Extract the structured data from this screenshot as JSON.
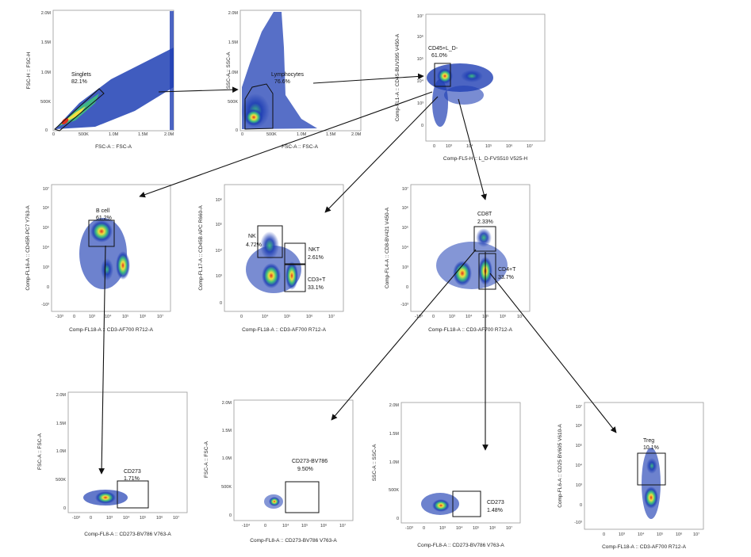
{
  "colors": {
    "low": "#1f3fb4",
    "mid": "#3fbf7f",
    "high": "#f0e040",
    "peak": "#e0301e"
  },
  "plots": [
    {
      "id": "p1",
      "x_label": "FSC-A :: FSC-A",
      "y_label": "FSC-H :: FSC-H",
      "x_ticks": [
        "0",
        "500K",
        "1.0M",
        "1.5M",
        "2.0M"
      ],
      "y_ticks": [
        "0",
        "500K",
        "1.0M",
        "1.5M",
        "2.0M"
      ],
      "gates": [
        {
          "name": "Singlets",
          "pct": "82.1%"
        }
      ]
    },
    {
      "id": "p2",
      "x_label": "FSC-A :: FSC-A",
      "y_label": "SSC-A :: SSC-A",
      "x_ticks": [
        "0",
        "500K",
        "1.0M",
        "1.5M",
        "2.0M"
      ],
      "y_ticks": [
        "0",
        "500K",
        "1.0M",
        "1.5M",
        "2.0M"
      ],
      "gates": [
        {
          "name": "Lymphocytes",
          "pct": "76.6%"
        }
      ]
    },
    {
      "id": "p3",
      "x_label": "Comp-FL5-H :: L_D-FVS510 V525-H",
      "y_label": "Comp-FL1-A :: CD45-BUV395 V450-A",
      "x_ticks": [
        "0",
        "10³",
        "10⁴",
        "10⁵",
        "10⁶",
        "10⁷"
      ],
      "y_ticks": [
        "10⁷",
        "10⁶",
        "10⁵",
        "10⁴",
        "10³",
        "0"
      ],
      "gates": [
        {
          "name": "CD45+L_D-",
          "pct": "61.0%"
        }
      ]
    },
    {
      "id": "p4",
      "x_label": "Comp-FL18-A :: CD3-AF700 R712-A",
      "y_label": "Comp-FL16-A :: CD45R-PC7 Y763-A",
      "x_ticks": [
        "-10³",
        "0",
        "10³",
        "10⁴",
        "10⁵",
        "10⁶",
        "10⁷"
      ],
      "y_ticks": [
        "10⁷",
        "10⁶",
        "10⁵",
        "10⁴",
        "10³",
        "0",
        "-10³"
      ],
      "gates": [
        {
          "name": "B cell",
          "pct": "61.2%"
        }
      ]
    },
    {
      "id": "p5",
      "x_label": "Comp-FL18-A :: CD3-AF700 R712-A",
      "y_label": "Comp-FL17-A :: CD45B APC R660-A",
      "x_ticks": [
        "0",
        "10⁴",
        "10⁵",
        "10⁶",
        "10⁷"
      ],
      "y_ticks": [
        "10⁶",
        "10⁵",
        "10⁴",
        "10³",
        "0"
      ],
      "gates": [
        {
          "name": "NK",
          "pct": "4.72%"
        },
        {
          "name": "NKT",
          "pct": "2.61%"
        },
        {
          "name": "CD3+T",
          "pct": "33.1%"
        }
      ]
    },
    {
      "id": "p6",
      "x_label": "Comp-FL18-A :: CD3-AF700 R712-A",
      "y_label": "Comp-FL4-A :: CD8-BV421 V450-A",
      "x_ticks": [
        "-10³",
        "0",
        "10³",
        "10⁴",
        "10⁵",
        "10⁶",
        "10⁷"
      ],
      "y_ticks": [
        "10⁷",
        "10⁶",
        "10⁵",
        "10⁴",
        "10³",
        "0",
        "-10³"
      ],
      "gates": [
        {
          "name": "CD8T",
          "pct": "2.33%"
        },
        {
          "name": "CD4+T",
          "pct": "33.7%"
        }
      ]
    },
    {
      "id": "p7",
      "x_label": "Comp-FL8-A :: CD273-BV786 V763-A",
      "y_label": "FSC-A :: FSC-A",
      "x_ticks": [
        "-10³",
        "0",
        "10³",
        "10⁴",
        "10⁵",
        "10⁶",
        "10⁷"
      ],
      "y_ticks": [
        "2.0M",
        "1.5M",
        "1.0M",
        "500K",
        "0"
      ],
      "gates": [
        {
          "name": "CD273",
          "pct": "1.71%"
        }
      ]
    },
    {
      "id": "p8",
      "x_label": "Comp-FL8-A :: CD273-BV786 V763-A",
      "y_label": "FSC-A :: FSC-A",
      "x_ticks": [
        "-10⁴",
        "0",
        "10⁴",
        "10⁵",
        "10⁶",
        "10⁷"
      ],
      "y_ticks": [
        "2.0M",
        "1.5M",
        "1.0M",
        "500K",
        "0"
      ],
      "gates": [
        {
          "name": "CD273-BV786",
          "pct": "9.50%"
        }
      ]
    },
    {
      "id": "p9",
      "x_label": "Comp-FL8-A :: CD273-BV786 V763-A",
      "y_label": "SSC-A :: SSC-A",
      "x_ticks": [
        "-10³",
        "0",
        "10³",
        "10⁴",
        "10⁵",
        "10⁶",
        "10⁷"
      ],
      "y_ticks": [
        "2.0M",
        "1.5M",
        "1.0M",
        "500K",
        "0"
      ],
      "gates": [
        {
          "name": "CD273",
          "pct": "1.48%"
        }
      ]
    },
    {
      "id": "p10",
      "x_label": "Comp-FL18-A :: CD3-AF700 R712-A",
      "y_label": "Comp-FL6-A :: CD25 BV605 V610-A",
      "x_ticks": [
        "0",
        "10³",
        "10⁴",
        "10⁵",
        "10⁶",
        "10⁷"
      ],
      "y_ticks": [
        "10⁷",
        "10⁶",
        "10⁵",
        "10⁴",
        "10³",
        "0",
        "-10³"
      ],
      "gates": [
        {
          "name": "Treg",
          "pct": "10.1%"
        }
      ]
    }
  ]
}
